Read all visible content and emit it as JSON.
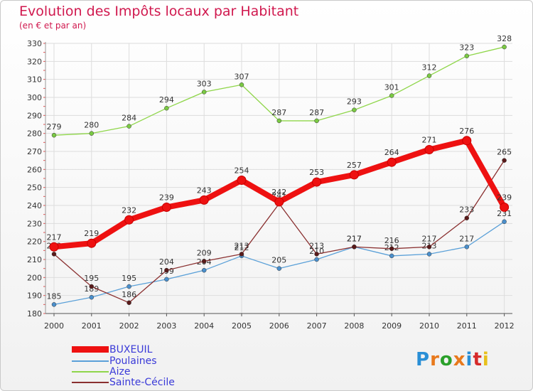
{
  "header": {
    "title": "Evolution des Impôts locaux par Habitant",
    "subtitle": "(en € et par an)"
  },
  "logo": {
    "text": "Proxiti",
    "letter_colors": [
      "#2a8fd6",
      "#e8791c",
      "#2aa02a",
      "#e8791c",
      "#2a8fd6",
      "#d62a2a",
      "#e8c01c"
    ]
  },
  "chart_data": {
    "type": "line",
    "title": "Evolution des Impôts locaux par Habitant",
    "subtitle": "(en € et par an)",
    "x": [
      "2000",
      "2001",
      "2002",
      "2003",
      "2004",
      "2005",
      "2006",
      "2007",
      "2008",
      "2009",
      "2010",
      "2011",
      "2012"
    ],
    "ylim": [
      180,
      330
    ],
    "yticks": [
      180,
      190,
      200,
      210,
      220,
      230,
      240,
      250,
      260,
      270,
      280,
      290,
      300,
      310,
      320,
      330
    ],
    "grid": true,
    "legend_position": "bottom-left",
    "series": [
      {
        "name": "Aize",
        "color": "#8fd64a",
        "marker_color": "#7ac943",
        "values": [
          279,
          280,
          284,
          294,
          303,
          307,
          287,
          287,
          293,
          301,
          312,
          323,
          328
        ]
      },
      {
        "name": "Poulaines",
        "color": "#5aa0d8",
        "marker_color": "#4a8fcc",
        "values": [
          185,
          189,
          195,
          199,
          204,
          212,
          205,
          210,
          217,
          212,
          213,
          217,
          231
        ]
      },
      {
        "name": "Sainte-Cécile",
        "color": "#8a3030",
        "marker_color": "#5a1a1a",
        "values": [
          213,
          195,
          186,
          204,
          209,
          213,
          241,
          213,
          217,
          216,
          217,
          233,
          265
        ]
      },
      {
        "name": "BUXEUIL",
        "color": "#ee1111",
        "marker_color": "#ee1111",
        "values": [
          217,
          219,
          232,
          239,
          243,
          254,
          242,
          253,
          257,
          264,
          271,
          276,
          239
        ]
      }
    ],
    "legend": [
      "BUXEUIL",
      "Poulaines",
      "Aize",
      "Sainte-Cécile"
    ]
  }
}
